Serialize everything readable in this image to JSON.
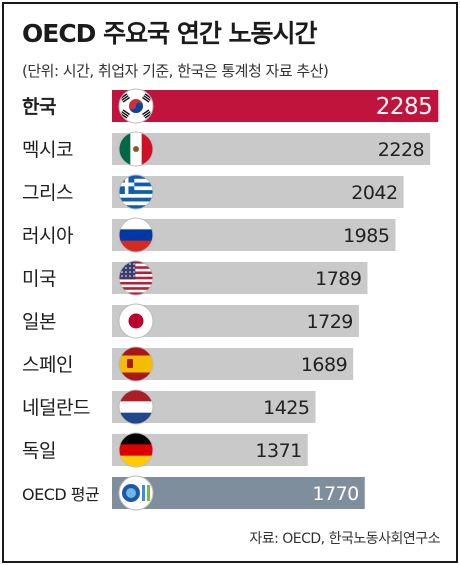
{
  "title": "OECD 주요국 연간 노동시간",
  "subtitle": "(단위: 시간, 취업자 기준, 한국은 통계청 자료 추산)",
  "source": "자료: OECD, 한국노동사회연구소",
  "colors": {
    "highlight_bar": "#c0143c",
    "default_bar": "#c9c9c9",
    "average_bar": "#7f8e9c",
    "highlight_value_text": "#ffffff",
    "default_value_text": "#222222",
    "average_value_text": "#ffffff"
  },
  "chart_data": {
    "type": "bar",
    "orientation": "horizontal",
    "title": "OECD 주요국 연간 노동시간",
    "subtitle": "(단위: 시간, 취업자 기준, 한국은 통계청 자료 추산)",
    "categories": [
      "한국",
      "멕시코",
      "그리스",
      "러시아",
      "미국",
      "일본",
      "스페인",
      "네덜란드",
      "독일",
      "OECD 평균"
    ],
    "values": [
      2285,
      2228,
      2042,
      1985,
      1789,
      1729,
      1689,
      1425,
      1371,
      1770
    ],
    "flags": [
      "korea-flag-icon",
      "mexico-flag-icon",
      "greece-flag-icon",
      "russia-flag-icon",
      "usa-flag-icon",
      "japan-flag-icon",
      "spain-flag-icon",
      "netherlands-flag-icon",
      "germany-flag-icon",
      "oecd-logo-icon"
    ],
    "highlight_index": 0,
    "average_index": 9,
    "xlabel": "",
    "ylabel": "",
    "legend": "none",
    "grid": false
  }
}
